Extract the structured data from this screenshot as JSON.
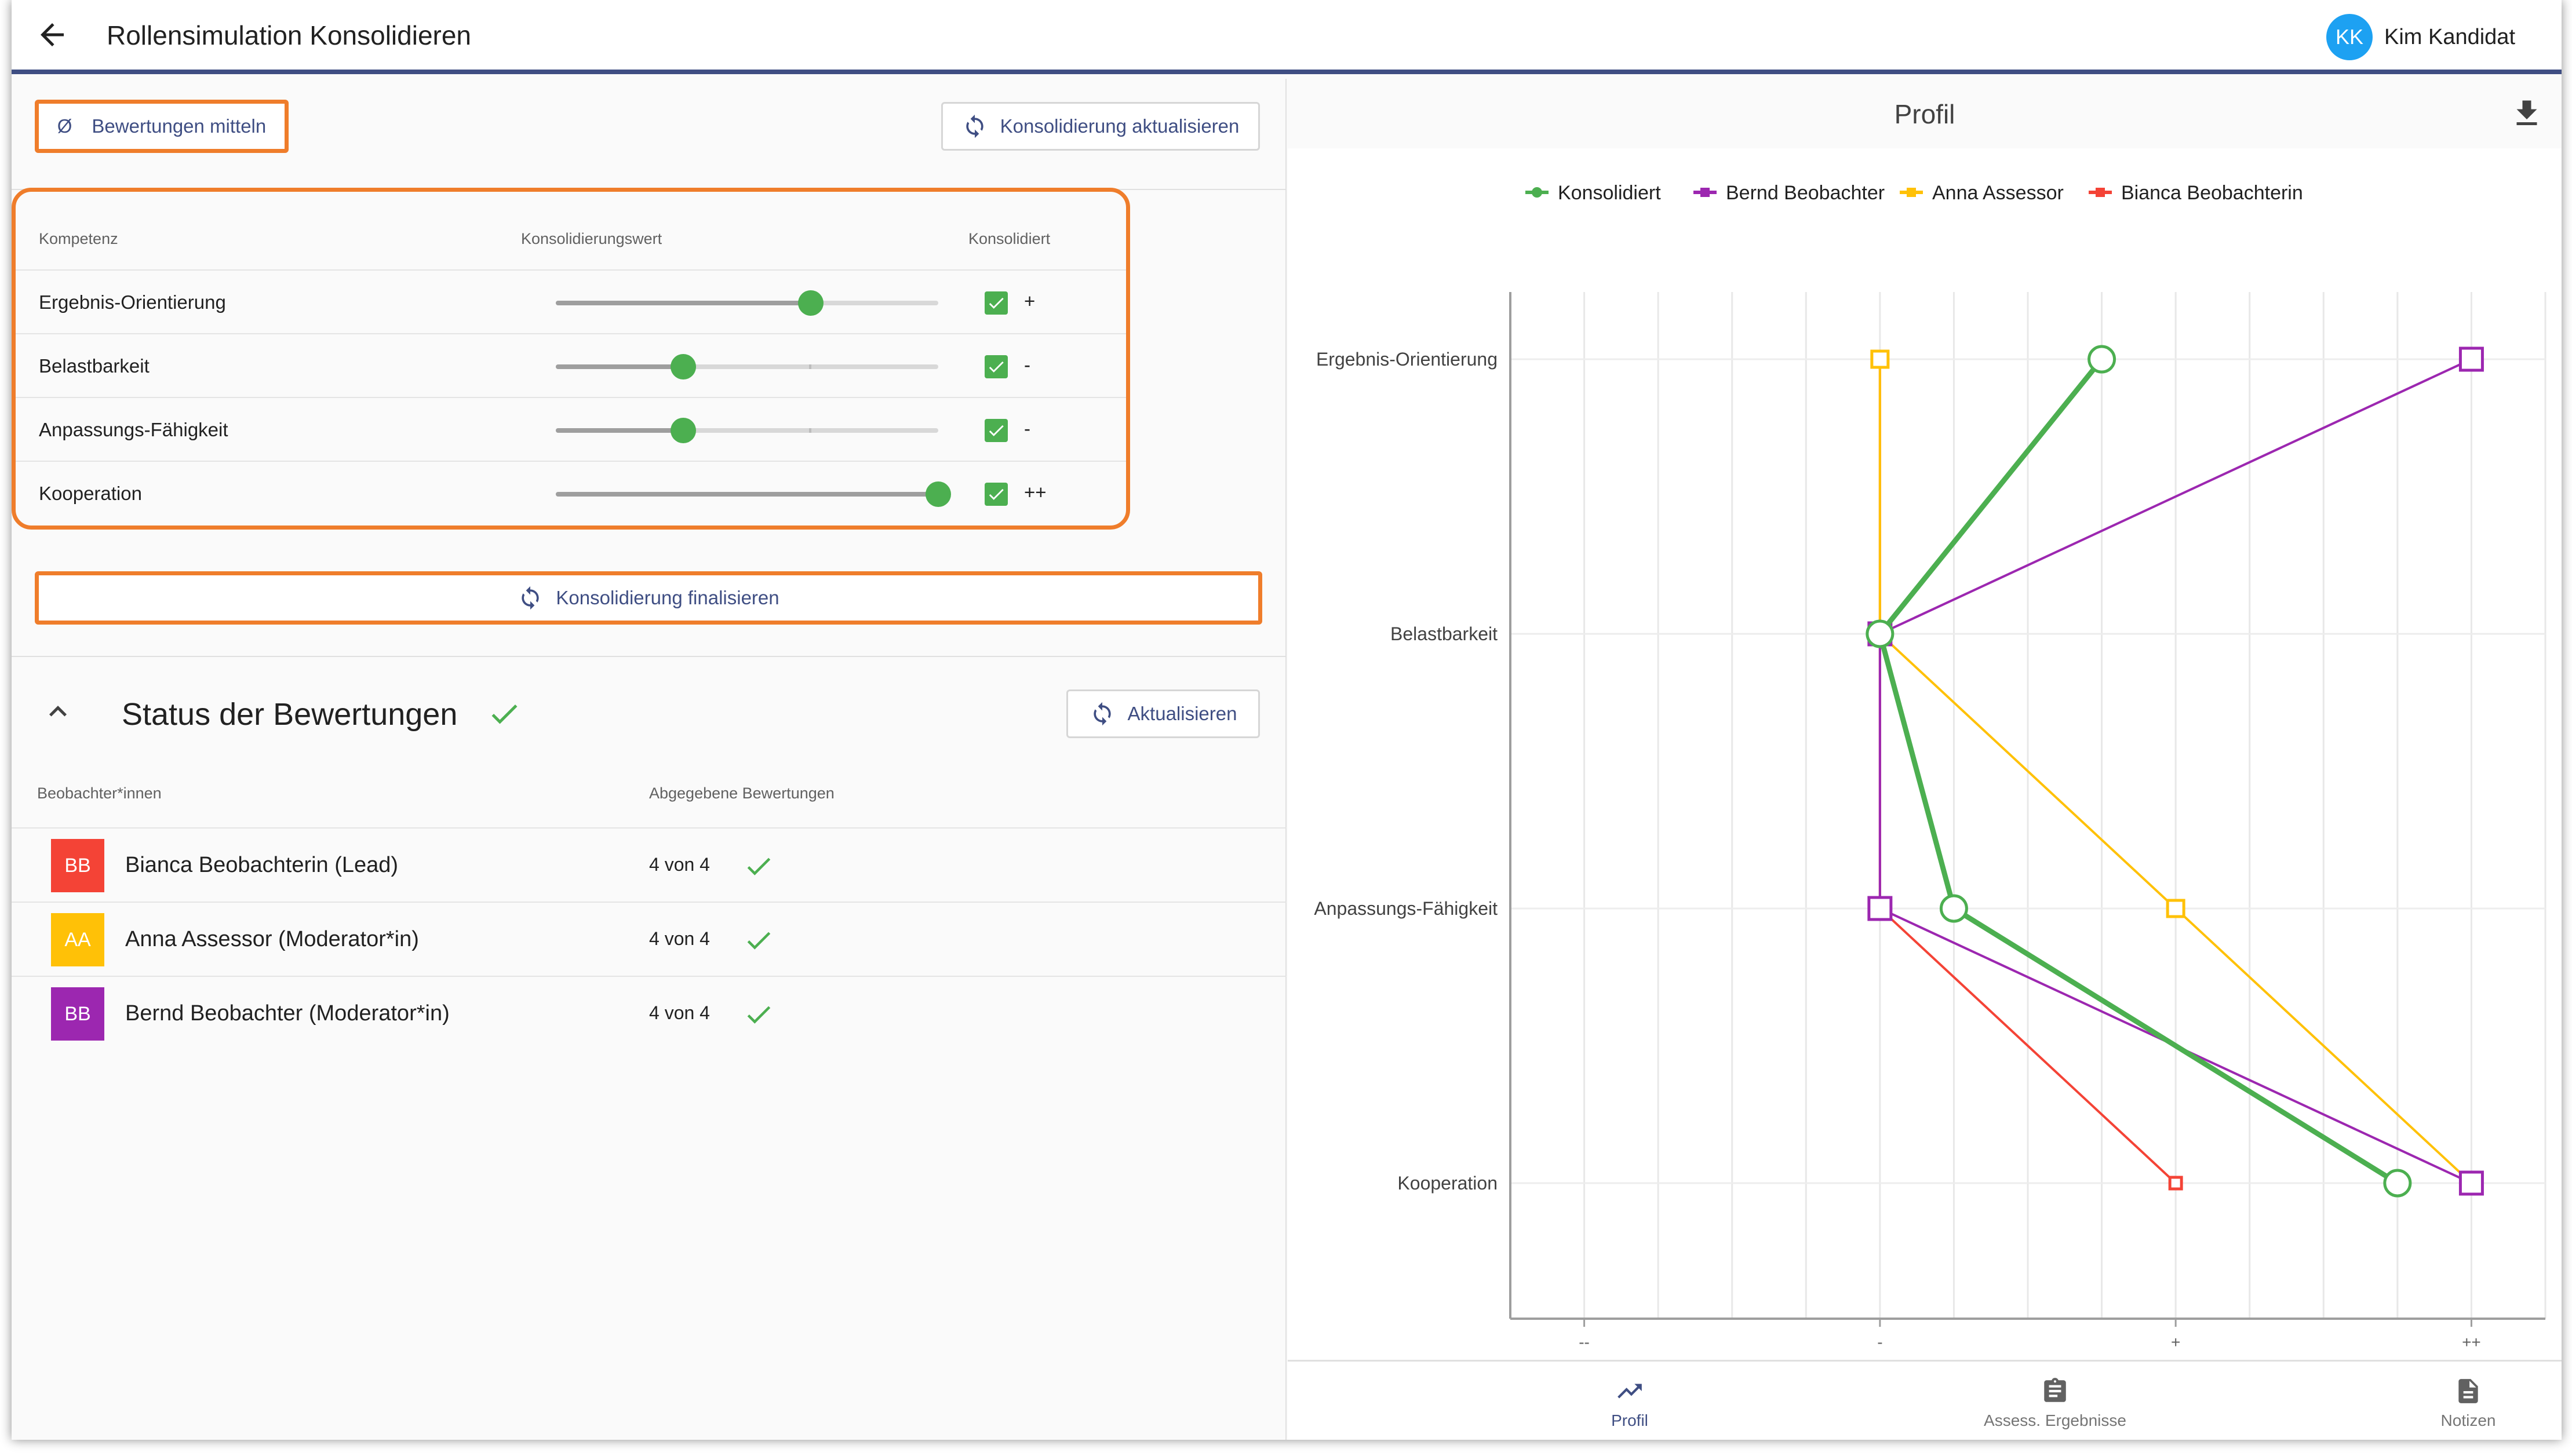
{
  "header": {
    "title": "Rollensimulation Konsolidieren",
    "user": {
      "initials": "KK",
      "name": "Kim Kandidat",
      "avatar_color": "#1da1f2"
    }
  },
  "toolbar": {
    "average_symbol": "Ø",
    "average_label": "Bewertungen mitteln",
    "refresh_consolidation_label": "Konsolidierung aktualisieren"
  },
  "consolidation": {
    "columns": {
      "competency": "Kompetenz",
      "value": "Konsolidierungswert",
      "consolidated": "Konsolidiert"
    },
    "rows": [
      {
        "label": "Ergebnis-Orientierung",
        "slider_value": 0.667,
        "checked": true,
        "value_label": "+"
      },
      {
        "label": "Belastbarkeit",
        "slider_value": 0.333,
        "checked": true,
        "value_label": "-"
      },
      {
        "label": "Anpassungs-Fähigkeit",
        "slider_value": 0.333,
        "checked": true,
        "value_label": "-"
      },
      {
        "label": "Kooperation",
        "slider_value": 1.0,
        "checked": true,
        "value_label": "++"
      }
    ],
    "finalize_label": "Konsolidierung finalisieren"
  },
  "status": {
    "title": "Status der Bewertungen",
    "refresh_label": "Aktualisieren",
    "columns": {
      "observers": "Beobachter*innen",
      "submitted": "Abgegebene Bewertungen"
    },
    "observers": [
      {
        "initials": "BB",
        "name": "Bianca Beobachterin (Lead)",
        "count": "4 von 4",
        "color": "#f44336"
      },
      {
        "initials": "AA",
        "name": "Anna Assessor (Moderator*in)",
        "count": "4 von 4",
        "color": "#ffc107"
      },
      {
        "initials": "BB",
        "name": "Bernd Beobachter (Moderator*in)",
        "count": "4 von 4",
        "color": "#9c27b0"
      }
    ]
  },
  "profile": {
    "title": "Profil"
  },
  "chart_data": {
    "type": "line",
    "orientation": "horizontal",
    "x_ticks": [
      "--",
      "-",
      "+",
      "++"
    ],
    "x_tick_positions": [
      1,
      5,
      9,
      13
    ],
    "xlim": [
      0,
      14
    ],
    "categories": [
      "Ergebnis-Orientierung",
      "Belastbarkeit",
      "Anpassungs-Fähigkeit",
      "Kooperation"
    ],
    "legend_position": "top",
    "grid": true,
    "series": [
      {
        "name": "Konsolidiert",
        "color": "#4caf50",
        "marker": "circle",
        "values": [
          8,
          5,
          6,
          12
        ]
      },
      {
        "name": "Bernd Beobachter",
        "color": "#9c27b0",
        "marker": "square",
        "values": [
          13,
          5,
          5,
          13
        ]
      },
      {
        "name": "Anna Assessor",
        "color": "#ffc107",
        "marker": "square",
        "values": [
          5,
          5,
          9,
          13
        ]
      },
      {
        "name": "Bianca Beobachterin",
        "color": "#f44336",
        "marker": "square",
        "values": [
          5,
          5,
          5,
          9
        ]
      }
    ]
  },
  "bottom_nav": [
    {
      "label": "Profil",
      "icon": "trending-up-icon",
      "active": true
    },
    {
      "label": "Assess. Ergebnisse",
      "icon": "clipboard-icon",
      "active": false
    },
    {
      "label": "Notizen",
      "icon": "document-icon",
      "active": false
    }
  ],
  "colors": {
    "accent": "#3f4e83",
    "highlight": "#ef7d2b",
    "success": "#4caf50"
  }
}
